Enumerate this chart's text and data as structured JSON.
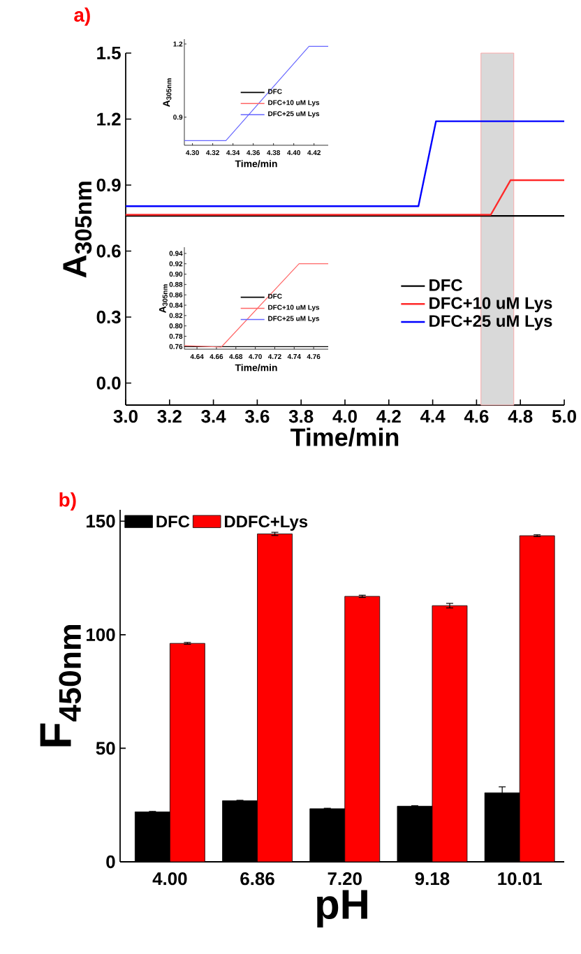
{
  "chart_data": [
    {
      "type": "line",
      "title": "a)",
      "xlabel": "Time/min",
      "ylabel": "A$_{305nm}$",
      "xlim": [
        3.0,
        5.0
      ],
      "ylim": [
        -0.1,
        1.5
      ],
      "xticks": [
        {
          "value": 3.0,
          "label": "3.0"
        },
        3.2,
        3.4,
        3.6,
        3.8,
        {
          "value": 4.0,
          "label": "4.0"
        },
        4.2,
        4.4,
        4.6,
        4.8,
        {
          "value": 5.0,
          "label": "5.0"
        }
      ],
      "yticks": [
        {
          "value": 0.0,
          "label": "0.0"
        },
        0.3,
        0.6,
        0.9,
        1.2,
        1.5
      ],
      "legend": "bottom right",
      "bands": [
        {
          "axis": "x",
          "from": 4.62,
          "to": 4.77,
          "color": "#d9d9d9"
        }
      ],
      "series": [
        {
          "name": "DFC",
          "color": "#000000",
          "x": [
            3.0,
            5.0
          ],
          "values": [
            0.76,
            0.76
          ]
        },
        {
          "name": "DFC+10 uM Lys",
          "color": "#ff2a2a",
          "x": [
            3.0,
            4.665,
            4.755,
            5.0
          ],
          "values": [
            0.765,
            0.765,
            0.922,
            0.922
          ]
        },
        {
          "name": "DFC+25 uM Lys",
          "color": "#0000ff",
          "x": [
            3.0,
            4.335,
            4.415,
            5.0
          ],
          "values": [
            0.804,
            0.804,
            1.19,
            1.19
          ]
        }
      ]
    },
    {
      "type": "line",
      "xlabel": "Time/min",
      "ylabel": "A$_{305nm}$",
      "xlim": [
        4.292,
        4.434
      ],
      "ylim": [
        0.785,
        1.22
      ],
      "xticks": [
        {
          "value": 4.3,
          "label": "4.30"
        },
        4.32,
        4.34,
        4.36,
        4.38,
        {
          "value": 4.4,
          "label": "4.40"
        },
        4.42
      ],
      "yticks": [
        0.9,
        1.2
      ],
      "legend": "bottom right",
      "series": [
        {
          "name": "DFC",
          "color": "#000000"
        },
        {
          "name": "DFC+10 uM Lys",
          "color": "#ff6666"
        },
        {
          "name": "DFC+25 uM Lys",
          "color": "#6666ff",
          "x": [
            4.292,
            4.333,
            4.415,
            4.434
          ],
          "values": [
            0.804,
            0.804,
            1.19,
            1.19
          ]
        }
      ]
    },
    {
      "type": "line",
      "xlabel": "Time/min",
      "ylabel": "A$_{305nm}$",
      "xlim": [
        4.627,
        4.775
      ],
      "ylim": [
        0.755,
        0.952
      ],
      "xticks": [
        4.64,
        4.66,
        4.68,
        {
          "value": 4.7,
          "label": "4.70"
        },
        4.72,
        4.74,
        4.76
      ],
      "yticks": [
        0.76,
        0.78,
        {
          "value": 0.8,
          "label": "0.80"
        },
        0.82,
        0.84,
        0.86,
        0.88,
        {
          "value": 0.9,
          "label": "0.90"
        },
        0.92,
        0.94
      ],
      "legend": "bottom right",
      "series": [
        {
          "name": "DFC",
          "color": "#000000",
          "x": [
            4.627,
            4.775
          ],
          "values": [
            0.76,
            0.76
          ]
        },
        {
          "name": "DFC+10 uM Lys",
          "color": "#ff6666",
          "x": [
            4.627,
            4.665,
            4.745,
            4.775
          ],
          "values": [
            0.762,
            0.759,
            0.92,
            0.92
          ]
        },
        {
          "name": "DFC+25 uM Lys",
          "color": "#6666ff"
        }
      ]
    },
    {
      "type": "bar",
      "title": "b)",
      "xlabel": "pH",
      "ylabel": "F$_{450nm}$",
      "categories": [
        "4.00",
        "6.86",
        "7.20",
        "9.18",
        "10.01"
      ],
      "ylim": [
        0,
        155
      ],
      "yticks": [
        0,
        50,
        100,
        150
      ],
      "legend": "top left",
      "series": [
        {
          "name": "DFC",
          "color": "#000000",
          "values": [
            22.0,
            26.9,
            23.4,
            24.5,
            30.4
          ],
          "errors": [
            0.2,
            0.2,
            0.2,
            0.2,
            2.6
          ]
        },
        {
          "name": "DDFC+Lys",
          "color": "#ff0000",
          "values": [
            96.2,
            144.4,
            116.9,
            112.8,
            143.6
          ],
          "errors": [
            0.4,
            0.7,
            0.5,
            1.0,
            0.4
          ]
        }
      ]
    }
  ]
}
